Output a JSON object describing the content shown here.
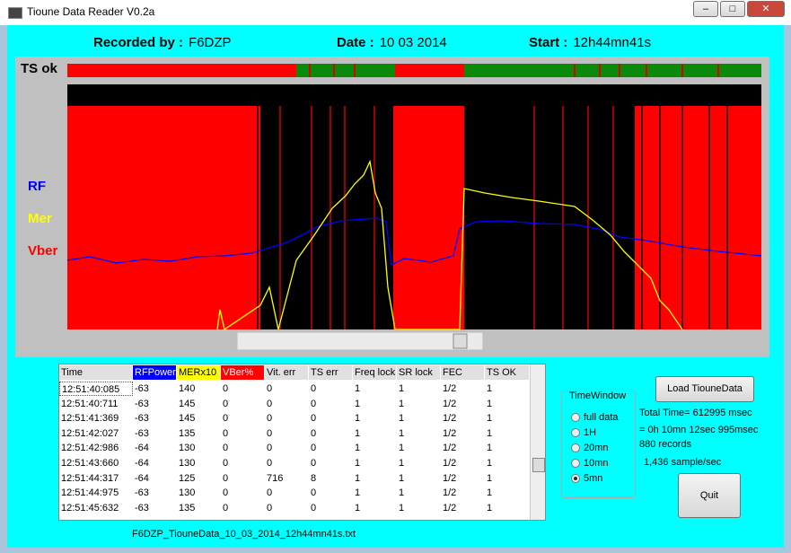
{
  "window": {
    "title": "Tioune Data Reader V0.2a"
  },
  "header": {
    "recorded_label": "Recorded by :",
    "recorded_value": "F6DZP",
    "date_label": "Date :",
    "date_value": "10 03 2014",
    "start_label": "Start :",
    "start_value": "12h44mn41s"
  },
  "plot": {
    "ts_label": "TS ok",
    "labels": [
      "RF",
      "Mer",
      "Vber"
    ]
  },
  "table": {
    "columns": [
      "Time",
      "RFPower",
      "MERx10",
      "VBer%",
      "Vit. err",
      "TS err",
      "Freq lock",
      "SR lock",
      "FEC",
      "TS OK"
    ],
    "rows": [
      [
        "12:51:40:085",
        "-63",
        "140",
        "0",
        "0",
        "0",
        "1",
        "1",
        "1/2",
        "1"
      ],
      [
        "12:51:40:711",
        "-63",
        "145",
        "0",
        "0",
        "0",
        "1",
        "1",
        "1/2",
        "1"
      ],
      [
        "12:51:41:369",
        "-63",
        "145",
        "0",
        "0",
        "0",
        "1",
        "1",
        "1/2",
        "1"
      ],
      [
        "12:51:42:027",
        "-63",
        "135",
        "0",
        "0",
        "0",
        "1",
        "1",
        "1/2",
        "1"
      ],
      [
        "12:51:42:986",
        "-64",
        "130",
        "0",
        "0",
        "0",
        "1",
        "1",
        "1/2",
        "1"
      ],
      [
        "12:51:43:660",
        "-64",
        "130",
        "0",
        "0",
        "0",
        "1",
        "1",
        "1/2",
        "1"
      ],
      [
        "12:51:44:317",
        "-64",
        "125",
        "0",
        "716",
        "8",
        "1",
        "1",
        "1/2",
        "1"
      ],
      [
        "12:51:44:975",
        "-63",
        "130",
        "0",
        "0",
        "0",
        "1",
        "1",
        "1/2",
        "1"
      ],
      [
        "12:51:45:632",
        "-63",
        "135",
        "0",
        "0",
        "0",
        "1",
        "1",
        "1/2",
        "1"
      ]
    ]
  },
  "time_window": {
    "title": "TimeWindow",
    "options": [
      "full data",
      "1H",
      "20mn",
      "10mn",
      "5mn"
    ],
    "selected": 4
  },
  "buttons": {
    "load": "Load TiouneData",
    "quit": "Quit"
  },
  "stats": {
    "total_time": "Total Time= 612995 msec",
    "duration": "= 0h  10mn 12sec 995msec",
    "records": "880 records",
    "rate": "1,436 sample/sec"
  },
  "filename": "F6DZP_TiouneData_10_03_2014_12h44mn41s.txt"
}
